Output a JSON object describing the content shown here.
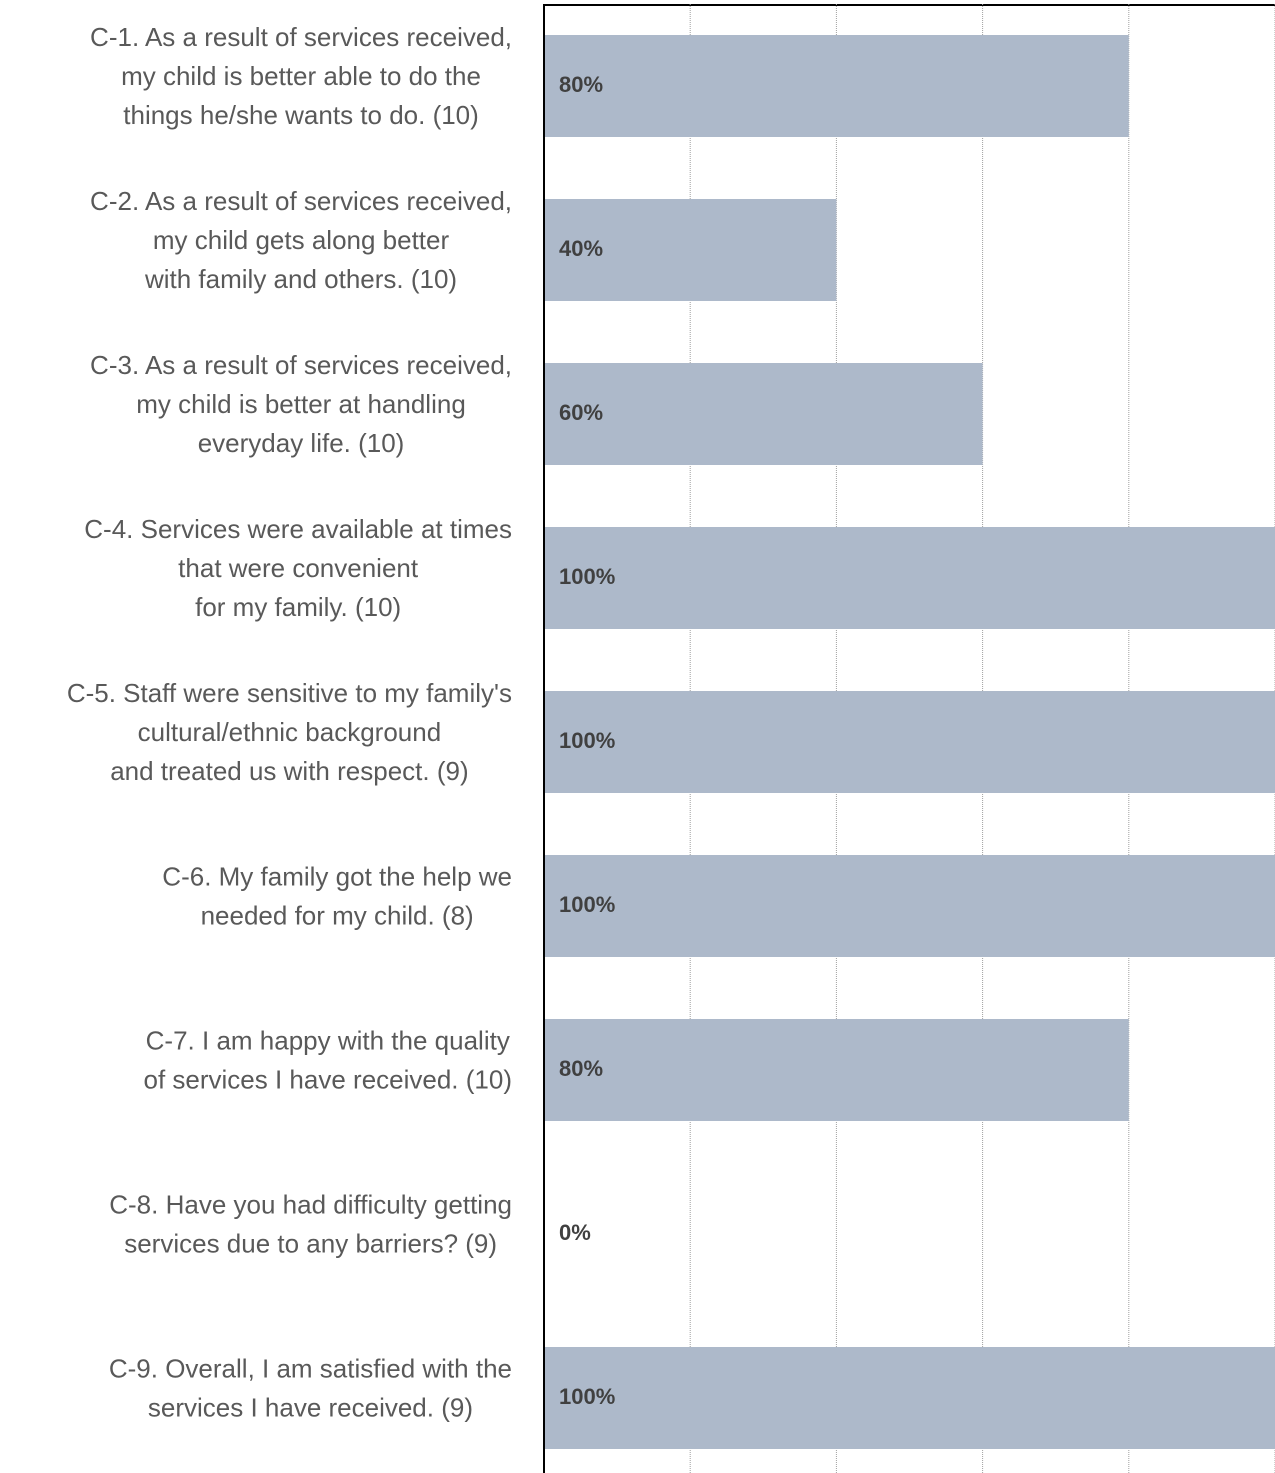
{
  "chart_data": {
    "type": "barh",
    "categories": [
      [
        "C-1.  As a result of services received,",
        "my child is better able to do the",
        "things he/she wants to do. (10)"
      ],
      [
        "C-2.  As a result of services received,",
        "my child gets along better",
        "with family and others.  (10)"
      ],
      [
        "C-3.  As a result of services received,",
        "my child is better at handling",
        "everyday life.  (10)"
      ],
      [
        "C-4.  Services were available at times",
        "that were convenient",
        "for my family. (10)"
      ],
      [
        "C-5. Staff were sensitive to my family's",
        "cultural/ethnic background",
        "and treated us with respect.  (9)"
      ],
      [
        "C-6.  My family got the help we",
        "needed for my child. (8)"
      ],
      [
        "C-7.  I am happy with the quality",
        "of services I have received.  (10)"
      ],
      [
        "C-8. Have you had difficulty getting",
        "services due to any barriers? (9)"
      ],
      [
        "C-9.  Overall, I am satisfied with the",
        "services I have received. (9)"
      ]
    ],
    "values": [
      80,
      40,
      60,
      100,
      100,
      100,
      80,
      0,
      100
    ],
    "value_labels": [
      "80%",
      "40%",
      "60%",
      "100%",
      "100%",
      "100%",
      "80%",
      "0%",
      "100%"
    ],
    "color": "#adb9ca",
    "xlim": [
      0,
      100
    ],
    "xticks": [
      0,
      20,
      40,
      60,
      80,
      100
    ],
    "grid": true
  }
}
